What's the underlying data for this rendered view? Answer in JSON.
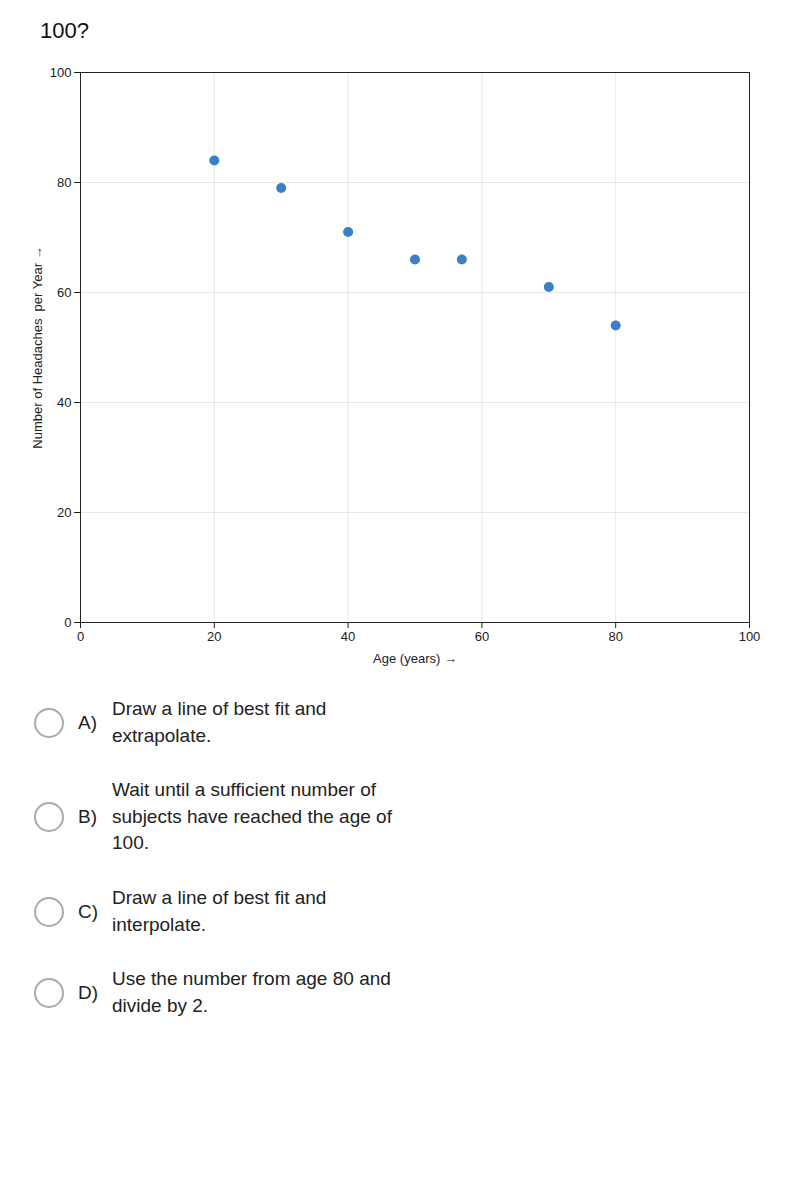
{
  "chart_data": {
    "type": "scatter",
    "title": "100?",
    "x": [
      20,
      30,
      40,
      50,
      57,
      70,
      80
    ],
    "values": [
      84,
      79,
      71,
      66,
      66,
      61,
      54
    ],
    "color": "#3B7FC4",
    "xlabel": "Age (years)",
    "ylabel": "Number of Headaches  per Year",
    "xlim": [
      0,
      100
    ],
    "ylim": [
      0,
      100
    ],
    "xticks": [
      0,
      20,
      40,
      60,
      80,
      100
    ],
    "yticks": [
      0,
      20,
      40,
      60,
      80,
      100
    ],
    "grid": true,
    "annotations": [
      {
        "label": "A)",
        "text": "Draw a line of best fit and\nextrapolate."
      },
      {
        "label": "B)",
        "text": "Wait until a sufficient number of\nsubjects have reached the age of\n100."
      },
      {
        "label": "C)",
        "text": "Draw a line of best fit and\ninterpolate."
      },
      {
        "label": "D)",
        "text": "Use the number from age 80 and\ndivide by 2."
      }
    ]
  }
}
